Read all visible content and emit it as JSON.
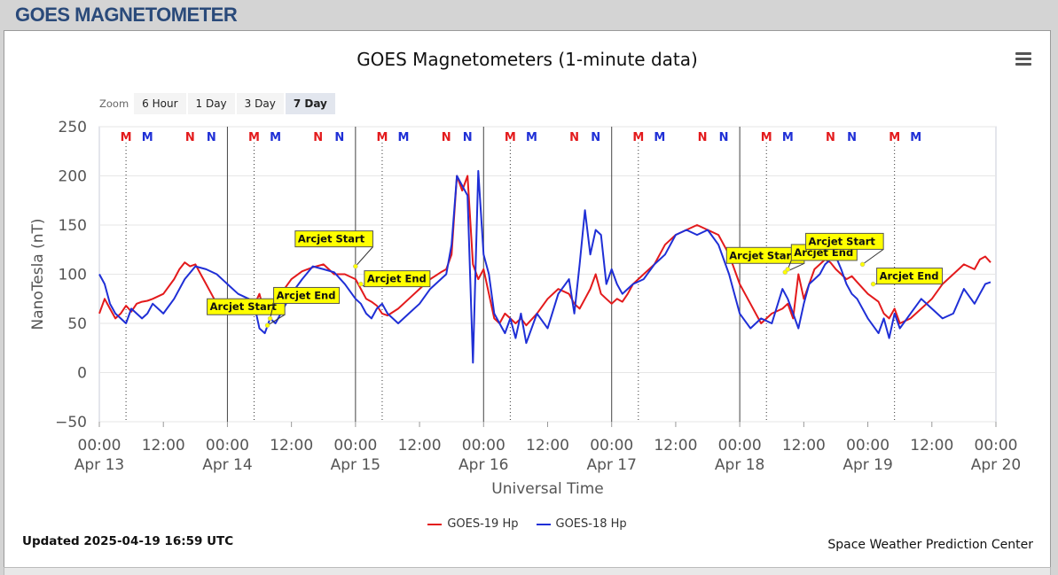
{
  "header": {
    "title": "GOES MAGNETOMETER"
  },
  "chart": {
    "title": "GOES Magnetometers (1-minute data)",
    "menu_icon": "hamburger-menu-icon",
    "zoom": {
      "label": "Zoom",
      "buttons": [
        "6 Hour",
        "1 Day",
        "3 Day",
        "7 Day"
      ],
      "active": "7 Day"
    }
  },
  "footer": {
    "updated": "Updated 2025-04-19 16:59 UTC",
    "credit": "Space Weather Prediction Center"
  },
  "chart_data": {
    "type": "line",
    "title": "GOES Magnetometers (1-minute data)",
    "xlabel": "Universal Time",
    "ylabel": "NanoTesla (nT)",
    "xlim": [
      0,
      168
    ],
    "ylim": [
      -50,
      250
    ],
    "yticks": [
      -50,
      0,
      50,
      100,
      150,
      200,
      250
    ],
    "xtick_labels": [
      [
        "00:00",
        "Apr 13"
      ],
      [
        "12:00",
        ""
      ],
      [
        "00:00",
        "Apr 14"
      ],
      [
        "12:00",
        ""
      ],
      [
        "00:00",
        "Apr 15"
      ],
      [
        "12:00",
        ""
      ],
      [
        "00:00",
        "Apr 16"
      ],
      [
        "12:00",
        ""
      ],
      [
        "00:00",
        "Apr 17"
      ],
      [
        "12:00",
        ""
      ],
      [
        "00:00",
        "Apr 18"
      ],
      [
        "12:00",
        ""
      ],
      [
        "00:00",
        "Apr 19"
      ],
      [
        "12:00",
        ""
      ],
      [
        "00:00",
        "Apr 20"
      ]
    ],
    "grid": true,
    "legend_position": "bottom-center",
    "colors": {
      "goes19": "#e31a1c",
      "goes18": "#1f2fd6",
      "annotation_bg": "#ffff00"
    },
    "series": [
      {
        "name": "GOES-19 Hp",
        "color": "#e31a1c",
        "x": [
          0,
          1,
          2,
          3,
          4,
          5,
          6,
          7,
          8,
          9,
          10,
          12,
          14,
          15,
          16,
          17,
          18,
          19,
          20,
          21,
          22,
          23,
          24,
          25,
          26,
          27,
          28,
          29,
          30,
          31,
          32,
          34,
          36,
          38,
          40,
          42,
          44,
          46,
          48,
          49,
          50,
          51,
          52,
          53,
          54,
          56,
          58,
          60,
          62,
          64,
          65,
          66,
          67,
          68,
          69,
          70,
          71,
          72,
          73,
          74,
          75,
          76,
          77,
          78,
          79,
          80,
          82,
          84,
          86,
          88,
          89,
          90,
          91,
          92,
          93,
          94,
          95,
          96,
          97,
          98,
          99,
          100,
          102,
          104,
          106,
          108,
          110,
          112,
          114,
          116,
          118,
          120,
          122,
          124,
          126,
          128,
          129,
          130,
          131,
          132,
          133,
          134,
          135,
          136,
          137,
          138,
          139,
          140,
          141,
          142,
          144,
          146,
          147,
          148,
          149,
          150,
          152,
          154,
          156,
          158,
          160,
          162,
          164,
          165,
          166,
          167
        ],
        "y": [
          60,
          75,
          65,
          55,
          60,
          68,
          62,
          70,
          72,
          73,
          75,
          80,
          95,
          105,
          112,
          108,
          110,
          100,
          90,
          80,
          70,
          65,
          60,
          65,
          70,
          72,
          75,
          68,
          80,
          60,
          70,
          80,
          95,
          103,
          107,
          110,
          100,
          100,
          95,
          85,
          75,
          72,
          68,
          60,
          58,
          65,
          75,
          85,
          95,
          102,
          105,
          120,
          200,
          185,
          200,
          110,
          95,
          105,
          80,
          55,
          50,
          60,
          55,
          50,
          55,
          48,
          60,
          75,
          85,
          80,
          70,
          65,
          75,
          85,
          100,
          80,
          75,
          70,
          75,
          72,
          80,
          90,
          100,
          110,
          130,
          140,
          145,
          150,
          145,
          140,
          120,
          90,
          70,
          50,
          60,
          65,
          70,
          55,
          100,
          75,
          90,
          105,
          110,
          115,
          112,
          105,
          100,
          95,
          98,
          92,
          80,
          72,
          60,
          55,
          65,
          50,
          55,
          65,
          75,
          90,
          100,
          110,
          105,
          115,
          118,
          112
        ]
      },
      {
        "name": "GOES-18 Hp",
        "color": "#1f2fd6",
        "x": [
          0,
          1,
          2,
          3,
          4,
          5,
          6,
          7,
          8,
          9,
          10,
          12,
          14,
          16,
          18,
          20,
          22,
          24,
          26,
          28,
          29,
          30,
          31,
          32,
          33,
          34,
          36,
          38,
          40,
          42,
          44,
          46,
          48,
          49,
          50,
          51,
          52,
          53,
          54,
          56,
          58,
          60,
          62,
          64,
          65,
          66,
          67,
          68,
          69,
          70,
          71,
          72,
          73,
          74,
          75,
          76,
          77,
          78,
          79,
          80,
          82,
          84,
          86,
          88,
          89,
          90,
          91,
          92,
          93,
          94,
          95,
          96,
          97,
          98,
          99,
          100,
          102,
          104,
          106,
          108,
          110,
          112,
          114,
          116,
          118,
          120,
          122,
          124,
          126,
          128,
          129,
          130,
          131,
          132,
          133,
          134,
          135,
          136,
          137,
          138,
          139,
          140,
          141,
          142,
          144,
          146,
          147,
          148,
          149,
          150,
          152,
          154,
          156,
          158,
          160,
          162,
          164,
          165,
          166,
          167
        ],
        "y": [
          100,
          90,
          70,
          60,
          55,
          50,
          65,
          60,
          55,
          60,
          70,
          60,
          75,
          95,
          108,
          105,
          100,
          90,
          80,
          75,
          70,
          45,
          40,
          55,
          50,
          60,
          80,
          95,
          108,
          105,
          102,
          90,
          75,
          70,
          60,
          55,
          65,
          70,
          60,
          50,
          60,
          70,
          85,
          95,
          100,
          130,
          200,
          190,
          180,
          10,
          205,
          120,
          100,
          60,
          50,
          40,
          55,
          35,
          60,
          30,
          60,
          45,
          80,
          95,
          60,
          110,
          165,
          120,
          145,
          140,
          90,
          105,
          90,
          80,
          85,
          90,
          95,
          110,
          120,
          140,
          145,
          140,
          145,
          130,
          100,
          60,
          45,
          55,
          50,
          85,
          75,
          60,
          45,
          70,
          90,
          95,
          100,
          110,
          115,
          118,
          105,
          90,
          80,
          75,
          55,
          40,
          55,
          35,
          60,
          45,
          60,
          75,
          65,
          55,
          60,
          85,
          70,
          80,
          90,
          92
        ]
      }
    ],
    "day_separators": [
      24,
      48,
      72,
      96,
      120
    ],
    "local_noon_markers": [
      {
        "label": "M",
        "series": "GOES-19 Hp",
        "x": [
          5,
          29,
          53,
          77,
          101,
          125,
          149
        ]
      },
      {
        "label": "M",
        "series": "GOES-18 Hp",
        "x": [
          9,
          33,
          57,
          81,
          105,
          129,
          153
        ]
      },
      {
        "label": "N",
        "series": "GOES-19 Hp",
        "x": [
          17,
          41,
          65,
          89,
          113,
          137
        ]
      },
      {
        "label": "N",
        "series": "GOES-18 Hp",
        "x": [
          21,
          45,
          69,
          93,
          117,
          141
        ]
      }
    ],
    "annotations": [
      {
        "text": "Arcjet Start",
        "x": 31.5,
        "y": 48
      },
      {
        "text": "Arcjet End",
        "x": 32,
        "y": 55
      },
      {
        "text": "Arcjet Start",
        "x": 48,
        "y": 108
      },
      {
        "text": "Arcjet End",
        "x": 49,
        "y": 90
      },
      {
        "text": "Arcjet Start",
        "x": 128.5,
        "y": 102
      },
      {
        "text": "Arcjet End",
        "x": 129,
        "y": 105
      },
      {
        "text": "Arcjet Start",
        "x": 143,
        "y": 110
      },
      {
        "text": "Arcjet End",
        "x": 145,
        "y": 90
      }
    ]
  }
}
